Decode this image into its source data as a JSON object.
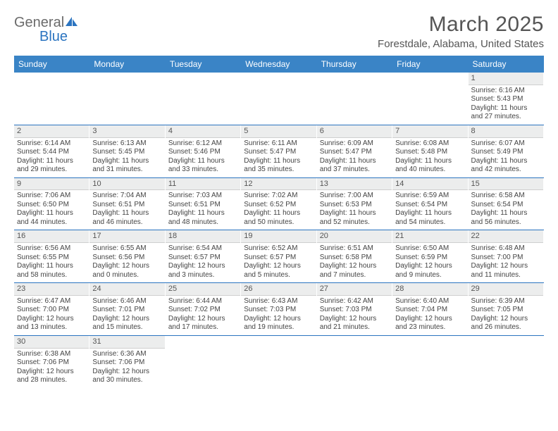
{
  "logo": {
    "word1": "General",
    "word2": "Blue"
  },
  "title": "March 2025",
  "location": "Forestdale, Alabama, United States",
  "day_headers": [
    "Sunday",
    "Monday",
    "Tuesday",
    "Wednesday",
    "Thursday",
    "Friday",
    "Saturday"
  ],
  "colors": {
    "header_bg": "#3a84c6",
    "header_text": "#ffffff",
    "rule": "#2b74c0",
    "daynum_bg": "#eceded",
    "text": "#444444",
    "title_text": "#555555"
  },
  "weeks": [
    [
      null,
      null,
      null,
      null,
      null,
      null,
      {
        "n": "1",
        "sr": "Sunrise: 6:16 AM",
        "ss": "Sunset: 5:43 PM",
        "dl1": "Daylight: 11 hours",
        "dl2": "and 27 minutes."
      }
    ],
    [
      {
        "n": "2",
        "sr": "Sunrise: 6:14 AM",
        "ss": "Sunset: 5:44 PM",
        "dl1": "Daylight: 11 hours",
        "dl2": "and 29 minutes."
      },
      {
        "n": "3",
        "sr": "Sunrise: 6:13 AM",
        "ss": "Sunset: 5:45 PM",
        "dl1": "Daylight: 11 hours",
        "dl2": "and 31 minutes."
      },
      {
        "n": "4",
        "sr": "Sunrise: 6:12 AM",
        "ss": "Sunset: 5:46 PM",
        "dl1": "Daylight: 11 hours",
        "dl2": "and 33 minutes."
      },
      {
        "n": "5",
        "sr": "Sunrise: 6:11 AM",
        "ss": "Sunset: 5:47 PM",
        "dl1": "Daylight: 11 hours",
        "dl2": "and 35 minutes."
      },
      {
        "n": "6",
        "sr": "Sunrise: 6:09 AM",
        "ss": "Sunset: 5:47 PM",
        "dl1": "Daylight: 11 hours",
        "dl2": "and 37 minutes."
      },
      {
        "n": "7",
        "sr": "Sunrise: 6:08 AM",
        "ss": "Sunset: 5:48 PM",
        "dl1": "Daylight: 11 hours",
        "dl2": "and 40 minutes."
      },
      {
        "n": "8",
        "sr": "Sunrise: 6:07 AM",
        "ss": "Sunset: 5:49 PM",
        "dl1": "Daylight: 11 hours",
        "dl2": "and 42 minutes."
      }
    ],
    [
      {
        "n": "9",
        "sr": "Sunrise: 7:06 AM",
        "ss": "Sunset: 6:50 PM",
        "dl1": "Daylight: 11 hours",
        "dl2": "and 44 minutes."
      },
      {
        "n": "10",
        "sr": "Sunrise: 7:04 AM",
        "ss": "Sunset: 6:51 PM",
        "dl1": "Daylight: 11 hours",
        "dl2": "and 46 minutes."
      },
      {
        "n": "11",
        "sr": "Sunrise: 7:03 AM",
        "ss": "Sunset: 6:51 PM",
        "dl1": "Daylight: 11 hours",
        "dl2": "and 48 minutes."
      },
      {
        "n": "12",
        "sr": "Sunrise: 7:02 AM",
        "ss": "Sunset: 6:52 PM",
        "dl1": "Daylight: 11 hours",
        "dl2": "and 50 minutes."
      },
      {
        "n": "13",
        "sr": "Sunrise: 7:00 AM",
        "ss": "Sunset: 6:53 PM",
        "dl1": "Daylight: 11 hours",
        "dl2": "and 52 minutes."
      },
      {
        "n": "14",
        "sr": "Sunrise: 6:59 AM",
        "ss": "Sunset: 6:54 PM",
        "dl1": "Daylight: 11 hours",
        "dl2": "and 54 minutes."
      },
      {
        "n": "15",
        "sr": "Sunrise: 6:58 AM",
        "ss": "Sunset: 6:54 PM",
        "dl1": "Daylight: 11 hours",
        "dl2": "and 56 minutes."
      }
    ],
    [
      {
        "n": "16",
        "sr": "Sunrise: 6:56 AM",
        "ss": "Sunset: 6:55 PM",
        "dl1": "Daylight: 11 hours",
        "dl2": "and 58 minutes."
      },
      {
        "n": "17",
        "sr": "Sunrise: 6:55 AM",
        "ss": "Sunset: 6:56 PM",
        "dl1": "Daylight: 12 hours",
        "dl2": "and 0 minutes."
      },
      {
        "n": "18",
        "sr": "Sunrise: 6:54 AM",
        "ss": "Sunset: 6:57 PM",
        "dl1": "Daylight: 12 hours",
        "dl2": "and 3 minutes."
      },
      {
        "n": "19",
        "sr": "Sunrise: 6:52 AM",
        "ss": "Sunset: 6:57 PM",
        "dl1": "Daylight: 12 hours",
        "dl2": "and 5 minutes."
      },
      {
        "n": "20",
        "sr": "Sunrise: 6:51 AM",
        "ss": "Sunset: 6:58 PM",
        "dl1": "Daylight: 12 hours",
        "dl2": "and 7 minutes."
      },
      {
        "n": "21",
        "sr": "Sunrise: 6:50 AM",
        "ss": "Sunset: 6:59 PM",
        "dl1": "Daylight: 12 hours",
        "dl2": "and 9 minutes."
      },
      {
        "n": "22",
        "sr": "Sunrise: 6:48 AM",
        "ss": "Sunset: 7:00 PM",
        "dl1": "Daylight: 12 hours",
        "dl2": "and 11 minutes."
      }
    ],
    [
      {
        "n": "23",
        "sr": "Sunrise: 6:47 AM",
        "ss": "Sunset: 7:00 PM",
        "dl1": "Daylight: 12 hours",
        "dl2": "and 13 minutes."
      },
      {
        "n": "24",
        "sr": "Sunrise: 6:46 AM",
        "ss": "Sunset: 7:01 PM",
        "dl1": "Daylight: 12 hours",
        "dl2": "and 15 minutes."
      },
      {
        "n": "25",
        "sr": "Sunrise: 6:44 AM",
        "ss": "Sunset: 7:02 PM",
        "dl1": "Daylight: 12 hours",
        "dl2": "and 17 minutes."
      },
      {
        "n": "26",
        "sr": "Sunrise: 6:43 AM",
        "ss": "Sunset: 7:03 PM",
        "dl1": "Daylight: 12 hours",
        "dl2": "and 19 minutes."
      },
      {
        "n": "27",
        "sr": "Sunrise: 6:42 AM",
        "ss": "Sunset: 7:03 PM",
        "dl1": "Daylight: 12 hours",
        "dl2": "and 21 minutes."
      },
      {
        "n": "28",
        "sr": "Sunrise: 6:40 AM",
        "ss": "Sunset: 7:04 PM",
        "dl1": "Daylight: 12 hours",
        "dl2": "and 23 minutes."
      },
      {
        "n": "29",
        "sr": "Sunrise: 6:39 AM",
        "ss": "Sunset: 7:05 PM",
        "dl1": "Daylight: 12 hours",
        "dl2": "and 26 minutes."
      }
    ],
    [
      {
        "n": "30",
        "sr": "Sunrise: 6:38 AM",
        "ss": "Sunset: 7:06 PM",
        "dl1": "Daylight: 12 hours",
        "dl2": "and 28 minutes."
      },
      {
        "n": "31",
        "sr": "Sunrise: 6:36 AM",
        "ss": "Sunset: 7:06 PM",
        "dl1": "Daylight: 12 hours",
        "dl2": "and 30 minutes."
      },
      null,
      null,
      null,
      null,
      null
    ]
  ]
}
